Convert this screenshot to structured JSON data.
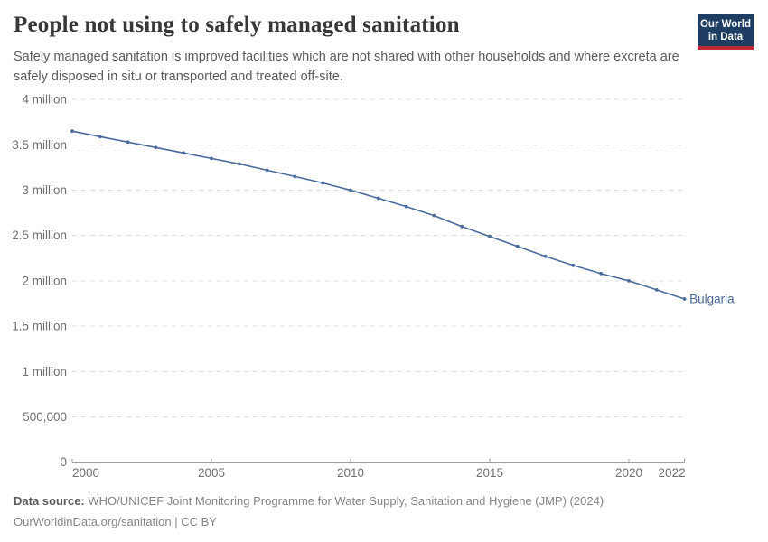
{
  "header": {
    "title": "People not using to safely managed sanitation",
    "subtitle": "Safely managed sanitation is improved facilities which are not shared with other households and where excreta are safely disposed in situ or transported and treated off-site.",
    "logo": {
      "line1": "Our World",
      "line2": "in Data"
    }
  },
  "chart_data": {
    "type": "line",
    "title": "People not using to safely managed sanitation",
    "xlabel": "",
    "ylabel": "",
    "xlim": [
      2000,
      2022
    ],
    "ylim": [
      0,
      4000000
    ],
    "grid": "horizontal-dashed",
    "legend": "inline-end-label",
    "x": [
      2000,
      2001,
      2002,
      2003,
      2004,
      2005,
      2006,
      2007,
      2008,
      2009,
      2010,
      2011,
      2012,
      2013,
      2014,
      2015,
      2016,
      2017,
      2018,
      2019,
      2020,
      2021,
      2022
    ],
    "series": [
      {
        "name": "Bulgaria",
        "color": "#4c6a9c",
        "values": [
          3650000,
          3590000,
          3530000,
          3470000,
          3410000,
          3350000,
          3290000,
          3220000,
          3150000,
          3080000,
          3000000,
          2910000,
          2820000,
          2720000,
          2600000,
          2490000,
          2380000,
          2270000,
          2170000,
          2080000,
          2000000,
          1900000,
          1800000
        ]
      }
    ],
    "xticks": [
      {
        "v": 2000,
        "label": "2000"
      },
      {
        "v": 2005,
        "label": "2005"
      },
      {
        "v": 2010,
        "label": "2010"
      },
      {
        "v": 2015,
        "label": "2015"
      },
      {
        "v": 2020,
        "label": "2020"
      },
      {
        "v": 2022,
        "label": "2022"
      }
    ],
    "yticks": [
      {
        "v": 0,
        "label": "0"
      },
      {
        "v": 500000,
        "label": "500,000"
      },
      {
        "v": 1000000,
        "label": "1 million"
      },
      {
        "v": 1500000,
        "label": "1.5 million"
      },
      {
        "v": 2000000,
        "label": "2 million"
      },
      {
        "v": 2500000,
        "label": "2.5 million"
      },
      {
        "v": 3000000,
        "label": "3 million"
      },
      {
        "v": 3500000,
        "label": "3.5 million"
      },
      {
        "v": 4000000,
        "label": "4 million"
      }
    ]
  },
  "footer": {
    "datasource_label": "Data source:",
    "datasource_text": " WHO/UNICEF Joint Monitoring Programme for Water Supply, Sanitation and Hygiene (JMP) (2024)",
    "attribution": "OurWorldinData.org/sanitation | CC BY"
  },
  "colors": {
    "line": "#4c6a9c",
    "logo_bg": "#1d3d63",
    "logo_stripe": "#be2832",
    "gridline": "#dcdcdc",
    "axis": "#9e9e9e",
    "tick_label": "#6f6f6f",
    "title_text": "#383838",
    "subtitle_text": "#5a5a5a"
  }
}
